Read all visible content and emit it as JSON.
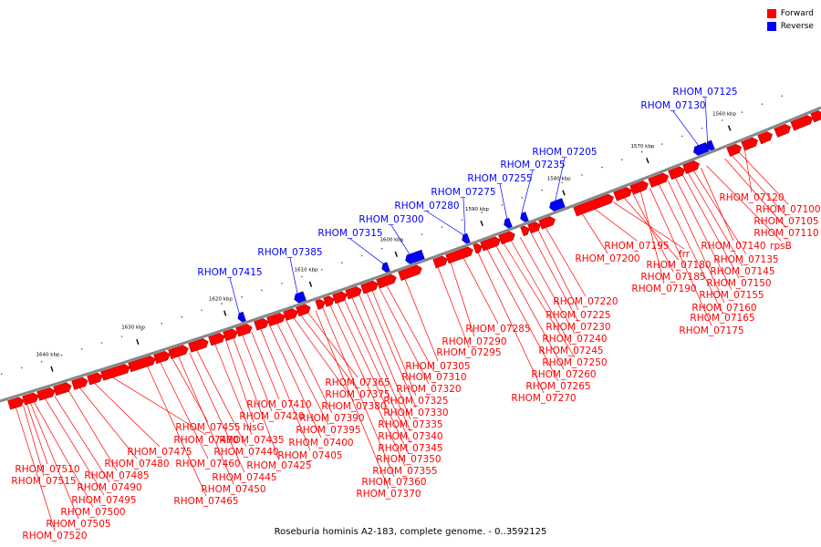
{
  "caption": "Roseburia hominis A2-183, complete genome. - 0..3592125",
  "legend": [
    {
      "label": "Forward",
      "color": "#ff0000"
    },
    {
      "label": "Reverse",
      "color": "#0000ff"
    }
  ],
  "colors": {
    "forward": "#ff0000",
    "reverse": "#0000ff",
    "backbone": "#888888"
  },
  "ticks": [
    "1640 kbp",
    "1630 kbp",
    "1620 kbp",
    "1610 kbp",
    "1600 kbp",
    "1590 kbp",
    "1580 kbp",
    "1570 kbp",
    "1560 kbp"
  ],
  "reverse_genes": [
    "RHOM_07125",
    "RHOM_07130",
    "RHOM_07205",
    "RHOM_07235",
    "RHOM_07255",
    "RHOM_07275",
    "RHOM_07280",
    "RHOM_07300",
    "RHOM_07315",
    "RHOM_07385",
    "RHOM_07415"
  ],
  "forward_genes": [
    "RHOM_07520",
    "RHOM_07505",
    "RHOM_07500",
    "RHOM_07515",
    "RHOM_07510",
    "RHOM_07495",
    "RHOM_07490",
    "RHOM_07485",
    "RHOM_07480",
    "RHOM_07475",
    "RHOM_07470",
    "RHOM_07465",
    "RHOM_07460",
    "RHOM_07455",
    "RHOM_07450",
    "RHOM_07445",
    "RHOM_07440",
    "RHOM_07435",
    "hisG",
    "RHOM_07425",
    "RHOM_07420",
    "RHOM_07410",
    "RHOM_07405",
    "RHOM_07400",
    "RHOM_07395",
    "RHOM_07390",
    "RHOM_07380",
    "RHOM_07375",
    "RHOM_07365",
    "RHOM_07370",
    "RHOM_07360",
    "RHOM_07355",
    "RHOM_07350",
    "RHOM_07345",
    "RHOM_07340",
    "RHOM_07335",
    "RHOM_07330",
    "RHOM_07325",
    "RHOM_07320",
    "RHOM_07310",
    "RHOM_07305",
    "RHOM_07295",
    "RHOM_07290",
    "RHOM_07285",
    "RHOM_07270",
    "RHOM_07265",
    "RHOM_07260",
    "RHOM_07250",
    "RHOM_07245",
    "RHOM_07240",
    "RHOM_07230",
    "RHOM_07225",
    "RHOM_07220",
    "RHOM_07200",
    "RHOM_07195",
    "frr",
    "RHOM_07180",
    "RHOM_07185",
    "RHOM_07190",
    "RHOM_07175",
    "RHOM_07165",
    "RHOM_07160",
    "RHOM_07155",
    "RHOM_07150",
    "RHOM_07145",
    "RHOM_07135",
    "RHOM_07140",
    "rpsB",
    "RHOM_07110",
    "RHOM_07105",
    "RHOM_07100",
    "RHOM_07120"
  ]
}
